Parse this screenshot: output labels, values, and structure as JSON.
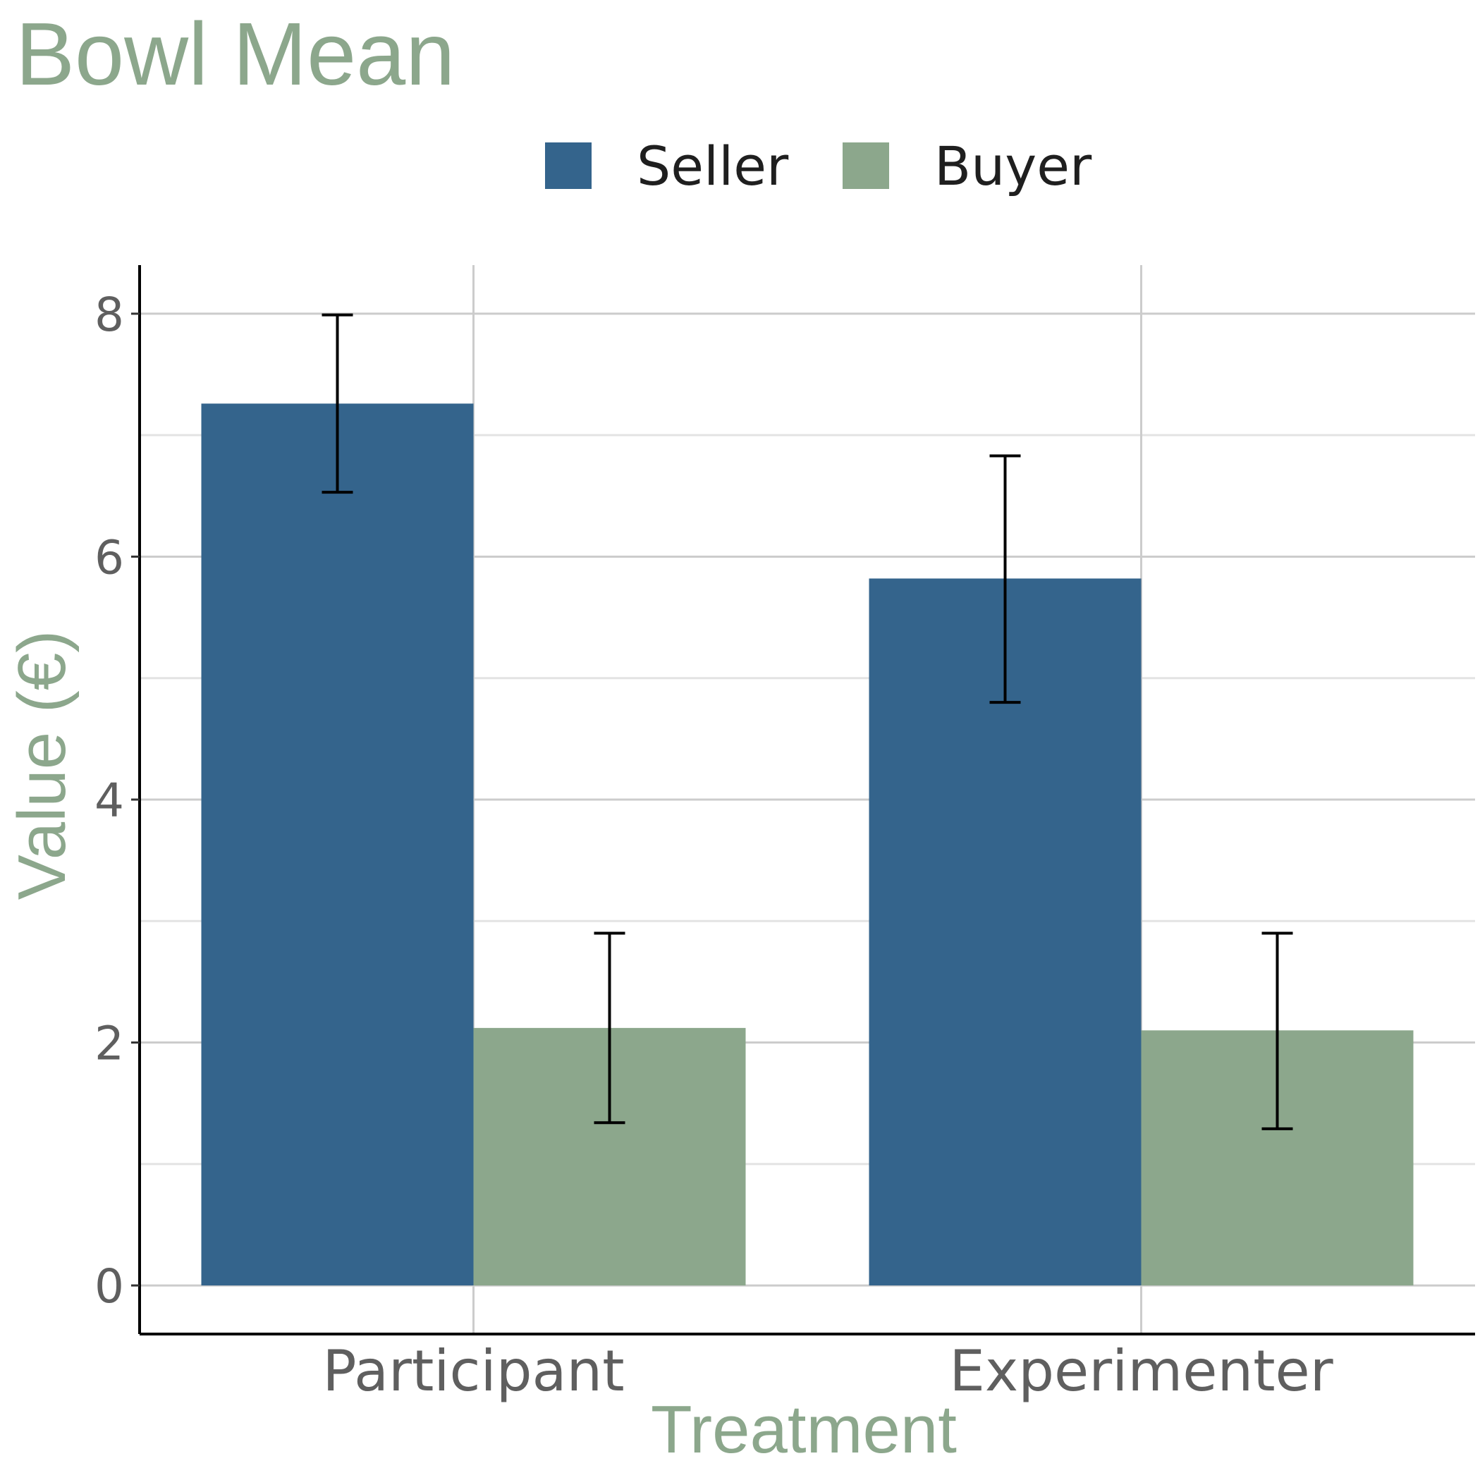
{
  "chart_data": {
    "type": "bar",
    "title": "Bowl Mean",
    "xlabel": "Treatment",
    "ylabel": "Value (€)",
    "categories": [
      "Participant",
      "Experimenter"
    ],
    "series": [
      {
        "name": "Seller",
        "color": "#34648c",
        "values": [
          7.26,
          5.82
        ],
        "err_low": [
          6.53,
          4.8
        ],
        "err_high": [
          7.99,
          6.83
        ]
      },
      {
        "name": "Buyer",
        "color": "#8ca78c",
        "values": [
          2.12,
          2.1
        ],
        "err_low": [
          1.34,
          1.29
        ],
        "err_high": [
          2.9,
          2.9
        ]
      }
    ],
    "ylim": [
      -0.4,
      8.4
    ],
    "yticks": [
      0,
      2,
      4,
      6,
      8
    ],
    "grid": true,
    "legend_position": "top",
    "colors": {
      "title": "#8ca78c",
      "axis_title": "#8ca78c",
      "grid": "#cccccc",
      "axis": "#000000"
    }
  }
}
